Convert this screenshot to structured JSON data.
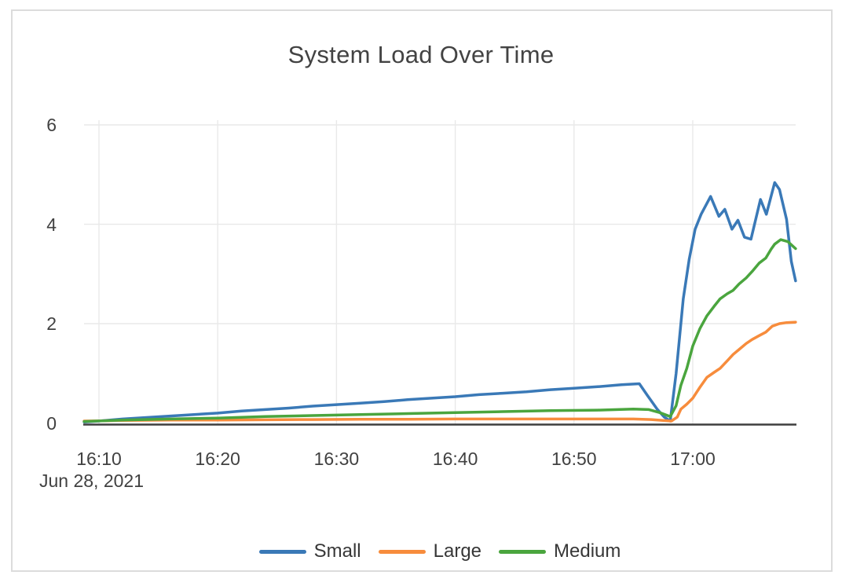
{
  "window": {
    "background": "#ffffff",
    "card_border_color": "#dcdcdc"
  },
  "chart_data": {
    "type": "line",
    "title": "System Load Over Time",
    "x_axis": {
      "date_label": "Jun 28, 2021",
      "ticks": [
        {
          "minutes": 10,
          "label": "16:10"
        },
        {
          "minutes": 20,
          "label": "16:20"
        },
        {
          "minutes": 30,
          "label": "16:30"
        },
        {
          "minutes": 40,
          "label": "16:40"
        },
        {
          "minutes": 50,
          "label": "16:50"
        },
        {
          "minutes": 60,
          "label": "17:00"
        }
      ],
      "units": "minutes after 16:00 on Jun 28, 2021",
      "range_minutes_after_1600": [
        8.75,
        68.66
      ],
      "grid": true
    },
    "y_axis": {
      "ticks": [
        {
          "value": 0,
          "label": "0"
        },
        {
          "value": 2,
          "label": "2"
        },
        {
          "value": 4,
          "label": "4"
        },
        {
          "value": 6,
          "label": "6"
        }
      ],
      "range": [
        0,
        6.11
      ],
      "grid": true
    },
    "legend": {
      "position": "bottom-center",
      "entries": [
        "Small",
        "Large",
        "Medium"
      ]
    },
    "colors": {
      "grid": "#e9e9e9",
      "axis_line": "#3f3f3f",
      "text": "#414141",
      "title": "#434343"
    },
    "series": [
      {
        "name": "Small",
        "color": "#3a79b7",
        "points": [
          [
            8.75,
            0.02
          ],
          [
            10,
            0.04
          ],
          [
            12,
            0.08
          ],
          [
            14,
            0.11
          ],
          [
            16,
            0.14
          ],
          [
            18,
            0.17
          ],
          [
            20,
            0.2
          ],
          [
            22,
            0.24
          ],
          [
            24,
            0.27
          ],
          [
            26,
            0.3
          ],
          [
            28,
            0.34
          ],
          [
            30,
            0.37
          ],
          [
            32,
            0.4
          ],
          [
            34,
            0.43
          ],
          [
            36,
            0.47
          ],
          [
            38,
            0.5
          ],
          [
            40,
            0.53
          ],
          [
            42,
            0.57
          ],
          [
            44,
            0.6
          ],
          [
            46,
            0.63
          ],
          [
            48,
            0.67
          ],
          [
            50,
            0.7
          ],
          [
            52,
            0.73
          ],
          [
            54,
            0.77
          ],
          [
            55.5,
            0.79
          ],
          [
            56.2,
            0.55
          ],
          [
            57.0,
            0.28
          ],
          [
            57.6,
            0.12
          ],
          [
            58.1,
            0.04
          ],
          [
            58.6,
            1.0
          ],
          [
            59.2,
            2.5
          ],
          [
            59.7,
            3.3
          ],
          [
            60.2,
            3.9
          ],
          [
            60.7,
            4.2
          ],
          [
            61.5,
            4.56
          ],
          [
            62.2,
            4.16
          ],
          [
            62.7,
            4.3
          ],
          [
            63.3,
            3.9
          ],
          [
            63.8,
            4.08
          ],
          [
            64.35,
            3.74
          ],
          [
            64.9,
            3.7
          ],
          [
            65.7,
            4.5
          ],
          [
            66.2,
            4.2
          ],
          [
            66.9,
            4.84
          ],
          [
            67.3,
            4.7
          ],
          [
            67.9,
            4.1
          ],
          [
            68.3,
            3.25
          ],
          [
            68.66,
            2.86
          ]
        ]
      },
      {
        "name": "Large",
        "color": "#f78c3c",
        "points": [
          [
            8.75,
            0.04
          ],
          [
            12,
            0.05
          ],
          [
            16,
            0.06
          ],
          [
            20,
            0.06
          ],
          [
            24,
            0.065
          ],
          [
            28,
            0.07
          ],
          [
            32,
            0.075
          ],
          [
            36,
            0.075
          ],
          [
            40,
            0.08
          ],
          [
            44,
            0.08
          ],
          [
            48,
            0.08
          ],
          [
            52,
            0.08
          ],
          [
            55,
            0.08
          ],
          [
            56.5,
            0.07
          ],
          [
            57.5,
            0.05
          ],
          [
            58.2,
            0.04
          ],
          [
            58.7,
            0.12
          ],
          [
            59.0,
            0.28
          ],
          [
            59.5,
            0.38
          ],
          [
            60.0,
            0.5
          ],
          [
            60.6,
            0.72
          ],
          [
            61.2,
            0.92
          ],
          [
            61.8,
            1.02
          ],
          [
            62.3,
            1.1
          ],
          [
            62.9,
            1.25
          ],
          [
            63.4,
            1.38
          ],
          [
            63.9,
            1.48
          ],
          [
            64.5,
            1.6
          ],
          [
            65.0,
            1.68
          ],
          [
            65.6,
            1.76
          ],
          [
            66.15,
            1.83
          ],
          [
            66.7,
            1.95
          ],
          [
            67.3,
            2.0
          ],
          [
            67.9,
            2.02
          ],
          [
            68.66,
            2.03
          ]
        ]
      },
      {
        "name": "Medium",
        "color": "#4aa53e",
        "points": [
          [
            8.75,
            0.03
          ],
          [
            12,
            0.06
          ],
          [
            16,
            0.08
          ],
          [
            20,
            0.1
          ],
          [
            24,
            0.13
          ],
          [
            28,
            0.15
          ],
          [
            32,
            0.17
          ],
          [
            36,
            0.19
          ],
          [
            40,
            0.21
          ],
          [
            44,
            0.23
          ],
          [
            48,
            0.25
          ],
          [
            52,
            0.26
          ],
          [
            55,
            0.28
          ],
          [
            56.3,
            0.27
          ],
          [
            57.2,
            0.21
          ],
          [
            58.1,
            0.13
          ],
          [
            58.6,
            0.35
          ],
          [
            59.0,
            0.76
          ],
          [
            59.5,
            1.1
          ],
          [
            60.0,
            1.55
          ],
          [
            60.6,
            1.9
          ],
          [
            61.2,
            2.16
          ],
          [
            61.8,
            2.35
          ],
          [
            62.3,
            2.5
          ],
          [
            62.9,
            2.6
          ],
          [
            63.4,
            2.67
          ],
          [
            63.9,
            2.8
          ],
          [
            64.5,
            2.92
          ],
          [
            65.0,
            3.05
          ],
          [
            65.6,
            3.22
          ],
          [
            66.15,
            3.32
          ],
          [
            66.6,
            3.5
          ],
          [
            66.9,
            3.6
          ],
          [
            67.4,
            3.69
          ],
          [
            68.0,
            3.65
          ],
          [
            68.66,
            3.51
          ]
        ]
      }
    ]
  }
}
